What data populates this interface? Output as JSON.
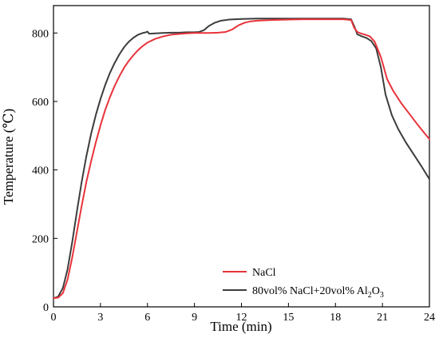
{
  "chart_data": {
    "type": "line",
    "xlabel": "Time (min)",
    "ylabel": "Temperature (℃)",
    "xlim": [
      0,
      24
    ],
    "ylim": [
      0,
      880
    ],
    "x_ticks": [
      0,
      3,
      6,
      9,
      12,
      15,
      18,
      21,
      24
    ],
    "y_ticks": [
      0,
      200,
      400,
      600,
      800
    ],
    "grid": false,
    "legend_position": "bottom-right",
    "series": [
      {
        "name": "NaCl",
        "color": "#e8333a",
        "x": [
          0,
          0.3,
          0.6,
          0.9,
          1.2,
          1.5,
          1.8,
          2.1,
          2.4,
          2.7,
          3.0,
          3.3,
          3.6,
          3.9,
          4.2,
          4.5,
          4.8,
          5.1,
          5.4,
          5.7,
          6.0,
          6.5,
          7.0,
          7.5,
          8.0,
          8.5,
          9.0,
          9.5,
          10.0,
          10.5,
          11.0,
          11.4,
          11.8,
          12.2,
          12.6,
          13.0,
          14.0,
          15.0,
          16.0,
          17.0,
          18.0,
          18.5,
          19.0,
          19.2,
          19.4,
          19.6,
          19.9,
          20.2,
          20.5,
          20.9,
          21.3,
          21.7,
          22.2,
          22.7,
          23.2,
          23.6,
          24.0
        ],
        "values": [
          25,
          27,
          40,
          80,
          145,
          220,
          295,
          365,
          425,
          480,
          530,
          575,
          612,
          645,
          673,
          698,
          718,
          735,
          750,
          762,
          772,
          783,
          790,
          795,
          797,
          799,
          800,
          800,
          800,
          801,
          803,
          810,
          822,
          830,
          834,
          836,
          838,
          839,
          840,
          840,
          840,
          840,
          838,
          815,
          803,
          799,
          795,
          790,
          775,
          730,
          665,
          630,
          595,
          565,
          535,
          512,
          490
        ]
      },
      {
        "name": "80vol% NaCl+20vol% Al2O3",
        "color": "#3c3c3c",
        "x": [
          0,
          0.3,
          0.6,
          0.9,
          1.2,
          1.5,
          1.8,
          2.1,
          2.4,
          2.7,
          3.0,
          3.3,
          3.6,
          3.9,
          4.2,
          4.5,
          4.8,
          5.1,
          5.4,
          5.7,
          5.9,
          6.0,
          6.1,
          6.2,
          6.5,
          7.0,
          7.5,
          8.0,
          8.5,
          9.0,
          9.3,
          9.6,
          9.9,
          10.3,
          10.7,
          11.2,
          12.0,
          13.0,
          14.0,
          15.0,
          16.0,
          17.0,
          18.0,
          18.5,
          19.0,
          19.2,
          19.4,
          19.7,
          20.0,
          20.3,
          20.6,
          20.9,
          21.2,
          21.6,
          22.0,
          22.5,
          23.0,
          23.5,
          24.0
        ],
        "values": [
          25,
          30,
          55,
          110,
          190,
          280,
          365,
          440,
          505,
          560,
          607,
          648,
          683,
          712,
          737,
          758,
          774,
          786,
          795,
          800,
          802,
          804,
          798,
          798,
          799,
          800,
          801,
          801,
          802,
          802,
          803,
          808,
          820,
          830,
          836,
          839,
          841,
          842,
          842,
          842,
          842,
          842,
          842,
          842,
          840,
          820,
          796,
          790,
          785,
          776,
          755,
          700,
          620,
          560,
          520,
          480,
          445,
          410,
          373
        ]
      }
    ],
    "legend": [
      {
        "parts": [
          {
            "text": "NaCl",
            "sub": false
          }
        ]
      },
      {
        "parts": [
          {
            "text": "80vol% NaCl+20vol% Al",
            "sub": false
          },
          {
            "text": "2",
            "sub": true
          },
          {
            "text": "O",
            "sub": false
          },
          {
            "text": "3",
            "sub": true
          }
        ]
      }
    ]
  }
}
